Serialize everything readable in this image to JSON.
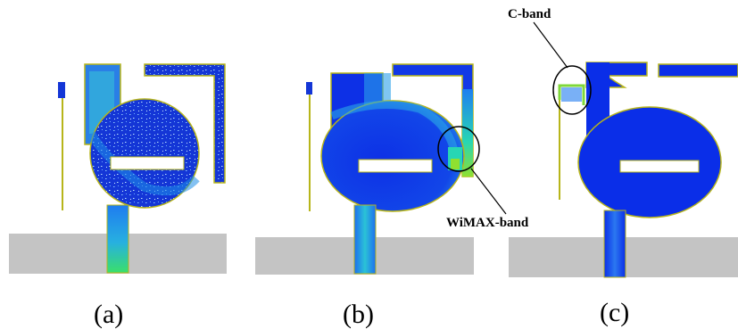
{
  "figure": {
    "panels": [
      {
        "id": "a",
        "caption": "(a)"
      },
      {
        "id": "b",
        "caption": "(b)"
      },
      {
        "id": "c",
        "caption": "(c)"
      }
    ],
    "annotations": {
      "wimax": "WiMAX-band",
      "cband": "C-band"
    },
    "colors": {
      "ground": "#c4c4c4",
      "field_low": "#0a2ee8",
      "field_mid": "#1f7cf0",
      "field_high": "#27d6b4",
      "hot": "#8fe030",
      "outline": "#b7b51a",
      "text": "#000000"
    }
  }
}
